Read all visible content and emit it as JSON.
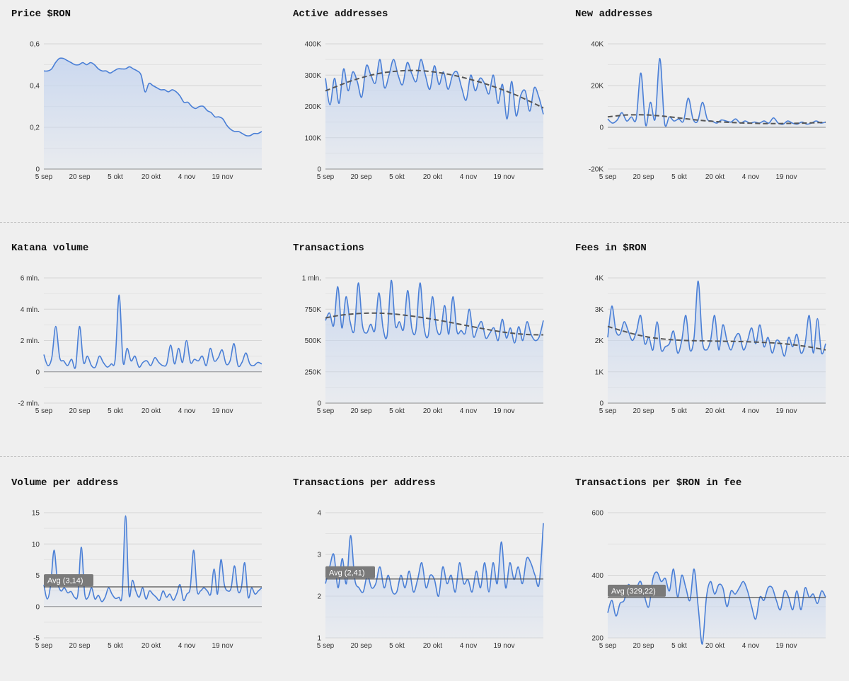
{
  "colors": {
    "line": "#4a7fd6",
    "area": "#c7d6ef",
    "trend": "#555555",
    "grid": "#d6d6d6",
    "background": "#efefef",
    "avg_label_bg": "#7a7a7a"
  },
  "x_tick_labels": [
    "5 sep",
    "20 sep",
    "5 okt",
    "20 okt",
    "4 nov",
    "19 nov"
  ],
  "chart_data": [
    {
      "type": "area",
      "title": "Price $RON",
      "ylim": [
        0,
        0.6
      ],
      "y_ticks": [
        0,
        0.2,
        0.4,
        0.6
      ],
      "y_tick_labels": [
        "0",
        "0,2",
        "0,4",
        "0,6"
      ],
      "x_tick_labels": [
        "5 sep",
        "20 sep",
        "5 okt",
        "20 okt",
        "4 nov",
        "19 nov"
      ],
      "grid": true,
      "series": [
        {
          "values": [
            0.47,
            0.47,
            0.48,
            0.51,
            0.53,
            0.53,
            0.52,
            0.51,
            0.5,
            0.5,
            0.51,
            0.5,
            0.51,
            0.5,
            0.48,
            0.47,
            0.47,
            0.46,
            0.47,
            0.48,
            0.48,
            0.48,
            0.49,
            0.48,
            0.47,
            0.45,
            0.37,
            0.41,
            0.4,
            0.39,
            0.38,
            0.38,
            0.37,
            0.38,
            0.37,
            0.35,
            0.32,
            0.32,
            0.3,
            0.29,
            0.3,
            0.3,
            0.28,
            0.27,
            0.25,
            0.25,
            0.24,
            0.21,
            0.19,
            0.18,
            0.18,
            0.17,
            0.16,
            0.16,
            0.17,
            0.17,
            0.18
          ]
        }
      ]
    },
    {
      "type": "area",
      "title": "Active addresses",
      "ylim": [
        0,
        400000
      ],
      "y_ticks": [
        0,
        100000,
        200000,
        300000,
        400000
      ],
      "y_tick_labels": [
        "0",
        "100K",
        "200K",
        "300K",
        "400K"
      ],
      "x_tick_labels": [
        "5 sep",
        "20 sep",
        "5 okt",
        "20 okt",
        "4 nov",
        "19 nov"
      ],
      "grid": true,
      "series": [
        {
          "values": [
            290000,
            205000,
            290000,
            210000,
            320000,
            250000,
            310000,
            280000,
            230000,
            330000,
            300000,
            275000,
            350000,
            260000,
            300000,
            350000,
            300000,
            270000,
            340000,
            305000,
            280000,
            350000,
            300000,
            255000,
            330000,
            270000,
            310000,
            255000,
            300000,
            310000,
            260000,
            220000,
            300000,
            250000,
            290000,
            275000,
            240000,
            300000,
            210000,
            270000,
            160000,
            280000,
            170000,
            235000,
            250000,
            185000,
            260000,
            230000,
            175000
          ]
        },
        {
          "values": [
            250000,
            265000,
            280000,
            292000,
            302000,
            309000,
            313000,
            315000,
            314000,
            310000,
            304000,
            296000,
            286000,
            275000,
            262000,
            248000,
            232000,
            214000,
            195000
          ],
          "style": "dashed-trend"
        }
      ]
    },
    {
      "type": "area",
      "title": "New addresses",
      "ylim": [
        -20000,
        40000
      ],
      "y_ticks": [
        -20000,
        0,
        20000,
        40000
      ],
      "y_tick_labels": [
        "-20K",
        "0",
        "20K",
        "40K"
      ],
      "x_tick_labels": [
        "5 sep",
        "20 sep",
        "5 okt",
        "20 okt",
        "4 nov",
        "19 nov"
      ],
      "grid": true,
      "series": [
        {
          "values": [
            4000,
            2000,
            3500,
            7000,
            3000,
            5000,
            4000,
            26000,
            1000,
            12000,
            4000,
            33000,
            2000,
            5000,
            3000,
            4000,
            3000,
            14000,
            4000,
            3000,
            12000,
            4000,
            3000,
            2000,
            3500,
            3000,
            2500,
            4000,
            2000,
            3000,
            2000,
            2500,
            2000,
            3000,
            2000,
            4500,
            2000,
            1500,
            3000,
            2000,
            1500,
            2500,
            1500,
            2000,
            3000,
            2000,
            2500
          ]
        },
        {
          "values": [
            5000,
            5800,
            6000,
            5700,
            5000,
            4100,
            3300,
            2700,
            2300,
            2000,
            1800,
            1800,
            1900,
            2100,
            2400
          ],
          "style": "dashed-trend"
        }
      ]
    },
    {
      "type": "area",
      "title": "Katana volume",
      "ylim": [
        -2000000,
        6000000
      ],
      "y_ticks": [
        -2000000,
        0,
        2000000,
        4000000,
        6000000
      ],
      "y_tick_labels": [
        "-2 mln.",
        "0",
        "2 mln.",
        "4 mln.",
        "6 mln."
      ],
      "x_tick_labels": [
        "5 sep",
        "20 sep",
        "5 okt",
        "20 okt",
        "4 nov",
        "19 nov"
      ],
      "grid": true,
      "series": [
        {
          "values": [
            1100000,
            400000,
            900000,
            2900000,
            900000,
            700000,
            400000,
            800000,
            300000,
            2900000,
            600000,
            1000000,
            400000,
            300000,
            1000000,
            600000,
            300000,
            500000,
            800000,
            4900000,
            600000,
            1500000,
            700000,
            1000000,
            300000,
            600000,
            700000,
            400000,
            900000,
            600000,
            400000,
            500000,
            1700000,
            500000,
            1500000,
            600000,
            2000000,
            600000,
            800000,
            700000,
            1000000,
            400000,
            1500000,
            700000,
            900000,
            1400000,
            500000,
            700000,
            1800000,
            400000,
            600000,
            1200000,
            500000,
            400000,
            600000,
            500000
          ]
        }
      ]
    },
    {
      "type": "area",
      "title": "Transactions",
      "ylim": [
        0,
        1000000
      ],
      "y_ticks": [
        0,
        250000,
        500000,
        750000,
        1000000
      ],
      "y_tick_labels": [
        "0",
        "250K",
        "500K",
        "750K",
        "1 mln."
      ],
      "x_tick_labels": [
        "5 sep",
        "20 sep",
        "5 okt",
        "20 okt",
        "4 nov",
        "19 nov"
      ],
      "grid": true,
      "series": [
        {
          "values": [
            660000,
            720000,
            620000,
            930000,
            600000,
            850000,
            650000,
            580000,
            960000,
            620000,
            560000,
            630000,
            580000,
            880000,
            600000,
            540000,
            980000,
            620000,
            650000,
            590000,
            900000,
            600000,
            580000,
            960000,
            600000,
            540000,
            850000,
            600000,
            560000,
            780000,
            550000,
            850000,
            570000,
            580000,
            560000,
            750000,
            530000,
            600000,
            650000,
            520000,
            560000,
            600000,
            500000,
            670000,
            520000,
            600000,
            480000,
            610000,
            500000,
            650000,
            550000,
            500000,
            530000,
            660000
          ]
        },
        {
          "values": [
            680000,
            700000,
            712000,
            718000,
            718000,
            712000,
            700000,
            685000,
            668000,
            648000,
            627000,
            606000,
            586000,
            568000,
            555000,
            547000,
            545000
          ],
          "style": "dashed-trend"
        }
      ]
    },
    {
      "type": "area",
      "title": "Fees in $RON",
      "ylim": [
        0,
        4000
      ],
      "y_ticks": [
        0,
        1000,
        2000,
        3000,
        4000
      ],
      "y_tick_labels": [
        "0",
        "1K",
        "2K",
        "3K",
        "4K"
      ],
      "x_tick_labels": [
        "5 sep",
        "20 sep",
        "5 okt",
        "20 okt",
        "4 nov",
        "19 nov"
      ],
      "grid": true,
      "series": [
        {
          "values": [
            2100,
            3100,
            2300,
            2200,
            2600,
            2300,
            2000,
            2300,
            2800,
            1900,
            2100,
            1700,
            2600,
            1700,
            1800,
            1900,
            2300,
            1600,
            2000,
            2800,
            1700,
            2100,
            3900,
            2000,
            1700,
            2000,
            2800,
            1700,
            2500,
            2000,
            1700,
            2100,
            2200,
            1700,
            2000,
            2400,
            1900,
            2500,
            1800,
            2100,
            1600,
            2000,
            1900,
            1500,
            2100,
            1800,
            2200,
            1600,
            1900,
            2800,
            1600,
            2700,
            1600,
            1900
          ]
        },
        {
          "values": [
            2450,
            2300,
            2170,
            2080,
            2030,
            2000,
            1990,
            1980,
            1970,
            1960,
            1940,
            1910,
            1860,
            1790,
            1700
          ],
          "style": "dashed-trend"
        }
      ]
    },
    {
      "type": "line",
      "title": "Volume per address",
      "ylim": [
        -5,
        15
      ],
      "y_ticks": [
        -5,
        0,
        5,
        10,
        15
      ],
      "y_tick_labels": [
        "-5",
        "0",
        "5",
        "10",
        "15"
      ],
      "x_tick_labels": [
        "5 sep",
        "20 sep",
        "5 okt",
        "20 okt",
        "4 nov",
        "19 nov"
      ],
      "grid": true,
      "average": 3.14,
      "average_label": "Avg (3,14)",
      "series": [
        {
          "values": [
            3.5,
            1.2,
            3.5,
            9,
            4,
            2.5,
            3,
            2.2,
            2.4,
            1.5,
            2,
            9.5,
            2,
            1.5,
            3,
            1.2,
            1.8,
            0.8,
            1.5,
            3,
            2,
            1.3,
            1.5,
            2,
            14.5,
            2,
            4.2,
            2.5,
            1.5,
            3,
            1.2,
            2.5,
            2,
            1.5,
            1,
            2.5,
            1.5,
            2,
            1,
            2,
            3.5,
            1,
            2,
            3,
            9,
            2.5,
            2.5,
            3,
            2.5,
            2,
            6,
            2,
            7.5,
            3.5,
            2.5,
            3,
            6.5,
            2.5,
            3,
            7,
            1.5,
            3,
            2,
            2.5,
            3
          ]
        }
      ]
    },
    {
      "type": "line",
      "title": "Transactions per address",
      "ylim": [
        1,
        4
      ],
      "y_ticks": [
        1,
        2,
        3,
        4
      ],
      "y_tick_labels": [
        "1",
        "2",
        "3",
        "4"
      ],
      "x_tick_labels": [
        "5 sep",
        "20 sep",
        "5 okt",
        "20 okt",
        "4 nov",
        "19 nov"
      ],
      "grid": true,
      "average": 2.41,
      "average_label": "Avg (2,41)",
      "series": [
        {
          "values": [
            2.3,
            2.7,
            3,
            2.2,
            2.9,
            2.3,
            3.45,
            2.4,
            2.2,
            2.1,
            2.5,
            2.2,
            2.3,
            2.7,
            2.2,
            2.5,
            2.1,
            2.1,
            2.5,
            2.2,
            2.6,
            2.1,
            2.4,
            2.8,
            2.2,
            2.5,
            2.4,
            2,
            2.7,
            2.3,
            2.5,
            2.1,
            2.8,
            2.3,
            2.4,
            2.1,
            2.6,
            2.2,
            2.8,
            2.1,
            2.8,
            2.3,
            3.3,
            2.2,
            2.8,
            2.4,
            2.7,
            2.3,
            2.9,
            2.8,
            2.5,
            2.3,
            3.75
          ]
        }
      ]
    },
    {
      "type": "line",
      "title": "Transactions per $RON in fee",
      "ylim": [
        200,
        600
      ],
      "y_ticks": [
        200,
        400,
        600
      ],
      "y_tick_labels": [
        "200",
        "400",
        "600"
      ],
      "x_tick_labels": [
        "5 sep",
        "20 sep",
        "5 okt",
        "20 okt",
        "4 nov",
        "19 nov"
      ],
      "grid": true,
      "average": 329.22,
      "average_label": "Avg (329,22)",
      "series": [
        {
          "values": [
            280,
            320,
            270,
            310,
            320,
            370,
            350,
            360,
            380,
            330,
            300,
            390,
            410,
            380,
            390,
            350,
            420,
            330,
            400,
            360,
            320,
            420,
            300,
            180,
            330,
            380,
            340,
            370,
            360,
            300,
            350,
            340,
            360,
            380,
            350,
            300,
            260,
            330,
            320,
            360,
            360,
            320,
            290,
            350,
            330,
            290,
            350,
            290,
            360,
            330,
            340,
            310,
            350,
            330
          ]
        }
      ]
    }
  ]
}
